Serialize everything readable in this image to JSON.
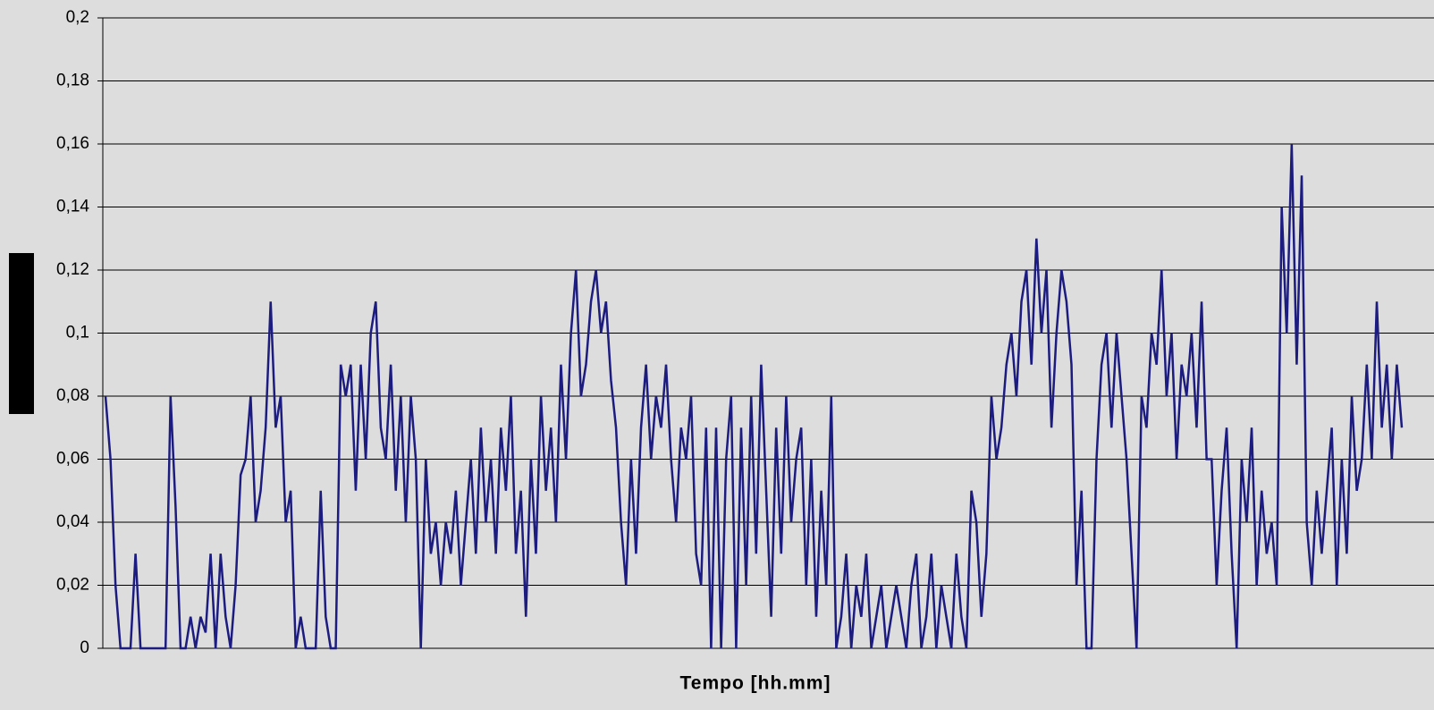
{
  "chart_data": {
    "type": "line",
    "x_label": "Tempo [hh.mm]",
    "color": "#1c1c80",
    "ylim": [
      0,
      0.2
    ],
    "yticks": [
      0,
      {
        "value": 0.02,
        "label": "0,02"
      },
      {
        "value": 0.04,
        "label": "0,04"
      },
      {
        "value": 0.06,
        "label": "0,06"
      },
      {
        "value": 0.08,
        "label": "0,08"
      },
      {
        "value": 0.1,
        "label": "0,1"
      },
      {
        "value": 0.12,
        "label": "0,12"
      },
      {
        "value": 0.14,
        "label": "0,14"
      },
      {
        "value": 0.16,
        "label": "0,16"
      },
      {
        "value": 0.18,
        "label": "0,18"
      },
      {
        "value": 0.2,
        "label": "0,2"
      }
    ],
    "grid": true,
    "values": [
      0.08,
      0.06,
      0.02,
      0,
      0,
      0,
      0.03,
      0,
      0,
      0,
      0,
      0,
      0,
      0.08,
      0.045,
      0,
      0,
      0.01,
      0,
      0.01,
      0.005,
      0.03,
      0,
      0.03,
      0.01,
      0,
      0.02,
      0.055,
      0.06,
      0.08,
      0.04,
      0.05,
      0.07,
      0.11,
      0.07,
      0.08,
      0.04,
      0.05,
      0,
      0.01,
      0,
      0,
      0,
      0.05,
      0.01,
      0,
      0,
      0.09,
      0.08,
      0.09,
      0.05,
      0.09,
      0.06,
      0.1,
      0.11,
      0.07,
      0.06,
      0.09,
      0.05,
      0.08,
      0.04,
      0.08,
      0.06,
      0,
      0.06,
      0.03,
      0.04,
      0.02,
      0.04,
      0.03,
      0.05,
      0.02,
      0.04,
      0.06,
      0.03,
      0.07,
      0.04,
      0.06,
      0.03,
      0.07,
      0.05,
      0.08,
      0.03,
      0.05,
      0.01,
      0.06,
      0.03,
      0.08,
      0.05,
      0.07,
      0.04,
      0.09,
      0.06,
      0.1,
      0.12,
      0.08,
      0.09,
      0.11,
      0.12,
      0.1,
      0.11,
      0.085,
      0.07,
      0.04,
      0.02,
      0.06,
      0.03,
      0.07,
      0.09,
      0.06,
      0.08,
      0.07,
      0.09,
      0.06,
      0.04,
      0.07,
      0.06,
      0.08,
      0.03,
      0.02,
      0.07,
      0,
      0.07,
      0,
      0.06,
      0.08,
      0,
      0.07,
      0.02,
      0.08,
      0.03,
      0.09,
      0.05,
      0.01,
      0.07,
      0.03,
      0.08,
      0.04,
      0.06,
      0.07,
      0.02,
      0.06,
      0.01,
      0.05,
      0.02,
      0.08,
      0,
      0.01,
      0.03,
      0,
      0.02,
      0.01,
      0.03,
      0,
      0.01,
      0.02,
      0,
      0.01,
      0.02,
      0.01,
      0,
      0.02,
      0.03,
      0,
      0.01,
      0.03,
      0,
      0.02,
      0.01,
      0,
      0.03,
      0.01,
      0,
      0.05,
      0.04,
      0.01,
      0.03,
      0.08,
      0.06,
      0.07,
      0.09,
      0.1,
      0.08,
      0.11,
      0.12,
      0.09,
      0.13,
      0.1,
      0.12,
      0.07,
      0.1,
      0.12,
      0.11,
      0.09,
      0.02,
      0.05,
      0,
      0,
      0.06,
      0.09,
      0.1,
      0.07,
      0.1,
      0.08,
      0.06,
      0.03,
      0,
      0.08,
      0.07,
      0.1,
      0.09,
      0.12,
      0.08,
      0.1,
      0.06,
      0.09,
      0.08,
      0.1,
      0.07,
      0.11,
      0.06,
      0.06,
      0.02,
      0.05,
      0.07,
      0.03,
      0,
      0.06,
      0.04,
      0.07,
      0.02,
      0.05,
      0.03,
      0.04,
      0.02,
      0.14,
      0.1,
      0.16,
      0.09,
      0.15,
      0.04,
      0.02,
      0.05,
      0.03,
      0.05,
      0.07,
      0.02,
      0.06,
      0.03,
      0.08,
      0.05,
      0.06,
      0.09,
      0.06,
      0.11,
      0.07,
      0.09,
      0.06,
      0.09,
      0.07
    ]
  }
}
